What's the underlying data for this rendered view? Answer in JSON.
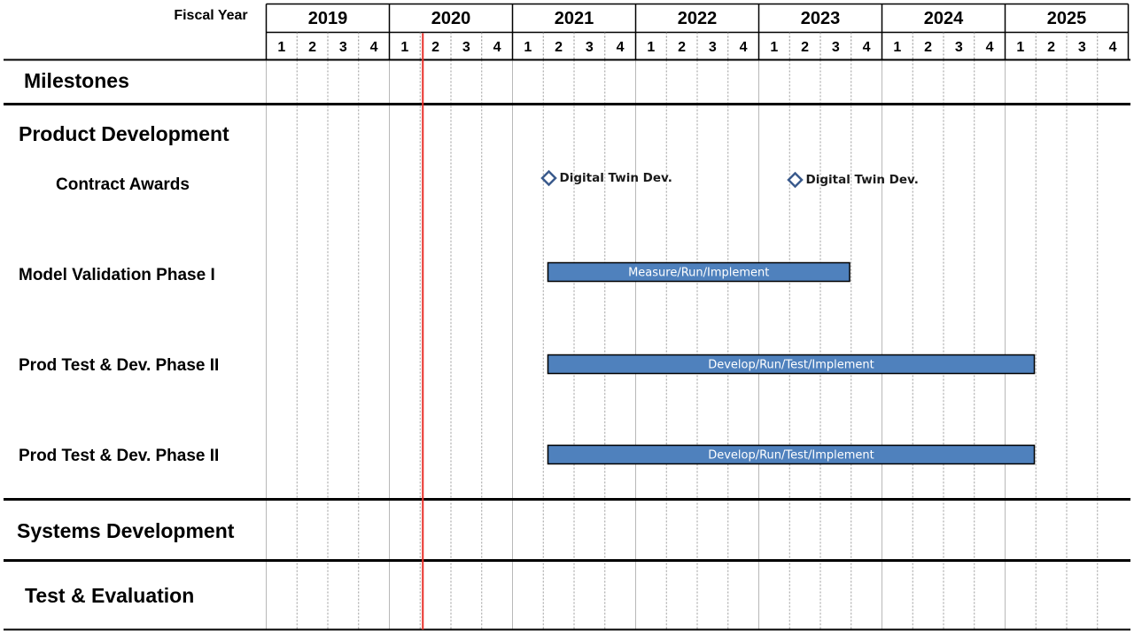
{
  "header": {
    "fiscal_year_label": "Fiscal Year",
    "years": [
      "2019",
      "2020",
      "2021",
      "2022",
      "2023",
      "2024",
      "2025"
    ],
    "quarters": [
      "1",
      "2",
      "3",
      "4"
    ]
  },
  "sections": [
    {
      "label": "Milestones"
    },
    {
      "label": "Product Development"
    },
    {
      "label": "Systems Development"
    },
    {
      "label": "Test & Evaluation"
    }
  ],
  "rows": [
    {
      "label": "Contract Awards"
    },
    {
      "label": "Model Validation Phase I"
    },
    {
      "label": "Prod Test & Dev. Phase II"
    },
    {
      "label": "Prod Test & Dev. Phase II"
    }
  ],
  "chart_data": {
    "type": "gantt",
    "time_axis": {
      "unit": "fiscal quarter",
      "start": "2019 Q1",
      "end": "2025 Q4"
    },
    "today_marker": {
      "year": "2020",
      "quarter": 2,
      "color": "#e8302a"
    },
    "milestones": [
      {
        "row": "Contract Awards",
        "label": "Digital Twin Dev.",
        "year": "2021",
        "quarter": 2
      },
      {
        "row": "Contract Awards",
        "label": "Digital Twin Dev.",
        "year": "2023",
        "quarter": 2
      }
    ],
    "bars": [
      {
        "row": "Model Validation Phase I",
        "label": "Measure/Run/Implement",
        "start": {
          "year": "2021",
          "quarter": 2
        },
        "end": {
          "year": "2023",
          "quarter": 3
        }
      },
      {
        "row": "Prod Test & Dev. Phase II",
        "label": "Develop/Run/Test/Implement",
        "start": {
          "year": "2021",
          "quarter": 2
        },
        "end": {
          "year": "2025",
          "quarter": 1
        }
      },
      {
        "row": "Prod Test & Dev. Phase II",
        "label": "Develop/Run/Test/Implement",
        "start": {
          "year": "2021",
          "quarter": 2
        },
        "end": {
          "year": "2025",
          "quarter": 1
        }
      }
    ]
  },
  "colors": {
    "bar_fill": "#4f81bd",
    "bar_border": "#000000",
    "milestone_stroke": "#3a5a8c",
    "today_line": "#e8302a",
    "grid": "#000000"
  }
}
